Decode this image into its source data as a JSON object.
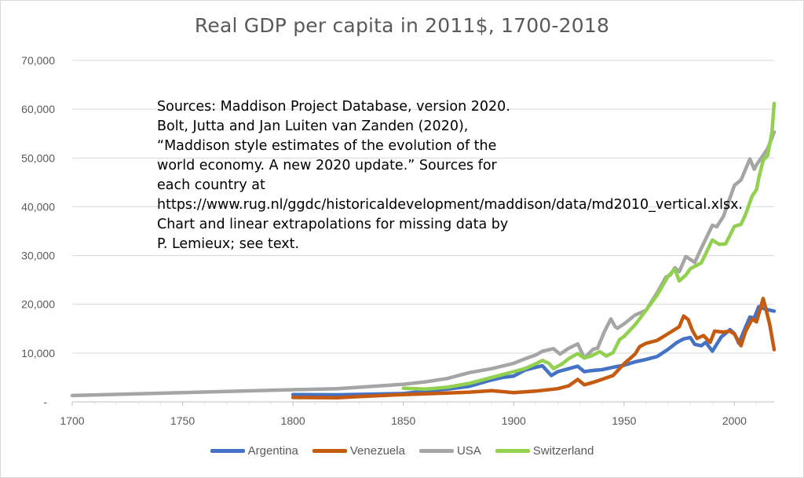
{
  "chart_data": {
    "type": "line",
    "title": "Real GDP per capita in 2011$, 1700-2018",
    "xlabel": "",
    "ylabel": "",
    "xlim": [
      1700,
      2018
    ],
    "ylim": [
      0,
      70000
    ],
    "x_ticks": [
      1700,
      1750,
      1800,
      1850,
      1900,
      1950,
      2000
    ],
    "y_ticks": [
      {
        "value": 0,
        "label": "-"
      },
      {
        "value": 10000,
        "label": "10,000"
      },
      {
        "value": 20000,
        "label": "20,000"
      },
      {
        "value": 30000,
        "label": "30,000"
      },
      {
        "value": 40000,
        "label": "40,000"
      },
      {
        "value": 50000,
        "label": "50,000"
      },
      {
        "value": 60000,
        "label": "60,000"
      },
      {
        "value": 70000,
        "label": "70,000"
      }
    ],
    "grid": true,
    "legend_position": "bottom",
    "annotation": "Sources: Maddison Project Database, version 2020. Bolt, Jutta and Jan Luiten van Zanden (2020), “Maddison style estimates of the evolution of the world economy. A new 2020 update.” Sources for each country at https://www.rug.nl/ggdc/historicaldevelopment/maddison/data/md2010_vertical.xlsx. Chart and linear extrapolations for missing data by P. Lemieux; see text.",
    "series": [
      {
        "name": "Argentina",
        "color": "#4472c4",
        "points": [
          [
            1800,
            1500
          ],
          [
            1820,
            1450
          ],
          [
            1850,
            1700
          ],
          [
            1860,
            2200
          ],
          [
            1870,
            2600
          ],
          [
            1880,
            3200
          ],
          [
            1890,
            4500
          ],
          [
            1895,
            5000
          ],
          [
            1900,
            5300
          ],
          [
            1905,
            6500
          ],
          [
            1910,
            7100
          ],
          [
            1913,
            7400
          ],
          [
            1917,
            5400
          ],
          [
            1920,
            6200
          ],
          [
            1925,
            6800
          ],
          [
            1929,
            7300
          ],
          [
            1932,
            6200
          ],
          [
            1935,
            6400
          ],
          [
            1940,
            6600
          ],
          [
            1945,
            7100
          ],
          [
            1950,
            7500
          ],
          [
            1955,
            8200
          ],
          [
            1960,
            8700
          ],
          [
            1965,
            9300
          ],
          [
            1970,
            10800
          ],
          [
            1974,
            12200
          ],
          [
            1977,
            12900
          ],
          [
            1980,
            13200
          ],
          [
            1982,
            11800
          ],
          [
            1985,
            11500
          ],
          [
            1987,
            12200
          ],
          [
            1990,
            10400
          ],
          [
            1994,
            13300
          ],
          [
            1998,
            14800
          ],
          [
            2000,
            14000
          ],
          [
            2002,
            12000
          ],
          [
            2005,
            15300
          ],
          [
            2007,
            17400
          ],
          [
            2009,
            17200
          ],
          [
            2011,
            19500
          ],
          [
            2014,
            19000
          ],
          [
            2016,
            18800
          ],
          [
            2018,
            18600
          ]
        ]
      },
      {
        "name": "Venezuela",
        "color": "#c55a11",
        "points": [
          [
            1800,
            900
          ],
          [
            1820,
            850
          ],
          [
            1830,
            1100
          ],
          [
            1850,
            1500
          ],
          [
            1870,
            1800
          ],
          [
            1880,
            2000
          ],
          [
            1890,
            2300
          ],
          [
            1900,
            1900
          ],
          [
            1910,
            2200
          ],
          [
            1920,
            2700
          ],
          [
            1925,
            3300
          ],
          [
            1929,
            4600
          ],
          [
            1932,
            3500
          ],
          [
            1936,
            4000
          ],
          [
            1940,
            4600
          ],
          [
            1945,
            5400
          ],
          [
            1950,
            7800
          ],
          [
            1955,
            9800
          ],
          [
            1957,
            11300
          ],
          [
            1960,
            12000
          ],
          [
            1965,
            12600
          ],
          [
            1970,
            14000
          ],
          [
            1975,
            15400
          ],
          [
            1977,
            17600
          ],
          [
            1979,
            16900
          ],
          [
            1981,
            14600
          ],
          [
            1983,
            13000
          ],
          [
            1986,
            13600
          ],
          [
            1989,
            12200
          ],
          [
            1991,
            14500
          ],
          [
            1995,
            14300
          ],
          [
            1998,
            14500
          ],
          [
            2000,
            13900
          ],
          [
            2002,
            12300
          ],
          [
            2003,
            11500
          ],
          [
            2005,
            14400
          ],
          [
            2008,
            17000
          ],
          [
            2010,
            16400
          ],
          [
            2012,
            19500
          ],
          [
            2013,
            21200
          ],
          [
            2014,
            19500
          ],
          [
            2016,
            15800
          ],
          [
            2018,
            10700
          ]
        ]
      },
      {
        "name": "USA",
        "color": "#a5a5a5",
        "points": [
          [
            1700,
            1300
          ],
          [
            1750,
            1900
          ],
          [
            1800,
            2500
          ],
          [
            1820,
            2700
          ],
          [
            1840,
            3300
          ],
          [
            1850,
            3600
          ],
          [
            1860,
            4100
          ],
          [
            1870,
            4800
          ],
          [
            1880,
            6000
          ],
          [
            1890,
            6800
          ],
          [
            1900,
            7900
          ],
          [
            1905,
            8800
          ],
          [
            1910,
            9600
          ],
          [
            1913,
            10400
          ],
          [
            1918,
            10900
          ],
          [
            1921,
            9800
          ],
          [
            1925,
            11000
          ],
          [
            1929,
            11900
          ],
          [
            1932,
            9000
          ],
          [
            1936,
            10800
          ],
          [
            1938,
            11000
          ],
          [
            1941,
            14300
          ],
          [
            1944,
            17000
          ],
          [
            1946,
            15400
          ],
          [
            1947,
            15100
          ],
          [
            1950,
            16000
          ],
          [
            1955,
            17800
          ],
          [
            1960,
            18800
          ],
          [
            1965,
            22400
          ],
          [
            1969,
            25600
          ],
          [
            1971,
            26000
          ],
          [
            1973,
            27500
          ],
          [
            1975,
            26700
          ],
          [
            1978,
            29800
          ],
          [
            1980,
            29200
          ],
          [
            1982,
            28600
          ],
          [
            1985,
            31500
          ],
          [
            1990,
            36200
          ],
          [
            1992,
            35900
          ],
          [
            1995,
            38000
          ],
          [
            2000,
            44400
          ],
          [
            2003,
            45500
          ],
          [
            2007,
            49800
          ],
          [
            2009,
            47700
          ],
          [
            2010,
            48600
          ],
          [
            2012,
            49900
          ],
          [
            2015,
            51900
          ],
          [
            2018,
            55300
          ]
        ]
      },
      {
        "name": "Switzerland",
        "color": "#92d050",
        "points": [
          [
            1850,
            2800
          ],
          [
            1860,
            2600
          ],
          [
            1870,
            3000
          ],
          [
            1880,
            3800
          ],
          [
            1890,
            5000
          ],
          [
            1900,
            6200
          ],
          [
            1905,
            6800
          ],
          [
            1910,
            7800
          ],
          [
            1913,
            8500
          ],
          [
            1916,
            7900
          ],
          [
            1918,
            6800
          ],
          [
            1922,
            7800
          ],
          [
            1925,
            8900
          ],
          [
            1929,
            9900
          ],
          [
            1932,
            9000
          ],
          [
            1935,
            9400
          ],
          [
            1939,
            10300
          ],
          [
            1942,
            9400
          ],
          [
            1945,
            10100
          ],
          [
            1948,
            12800
          ],
          [
            1950,
            13400
          ],
          [
            1955,
            15800
          ],
          [
            1960,
            18800
          ],
          [
            1965,
            21900
          ],
          [
            1970,
            25800
          ],
          [
            1973,
            27200
          ],
          [
            1975,
            24800
          ],
          [
            1978,
            26000
          ],
          [
            1980,
            27300
          ],
          [
            1985,
            28500
          ],
          [
            1990,
            33200
          ],
          [
            1993,
            32300
          ],
          [
            1996,
            32400
          ],
          [
            2000,
            36000
          ],
          [
            2003,
            36400
          ],
          [
            2005,
            38400
          ],
          [
            2008,
            42200
          ],
          [
            2010,
            43500
          ],
          [
            2011,
            45800
          ],
          [
            2013,
            49500
          ],
          [
            2015,
            50500
          ],
          [
            2017,
            55300
          ],
          [
            2018,
            61200
          ]
        ]
      }
    ]
  }
}
